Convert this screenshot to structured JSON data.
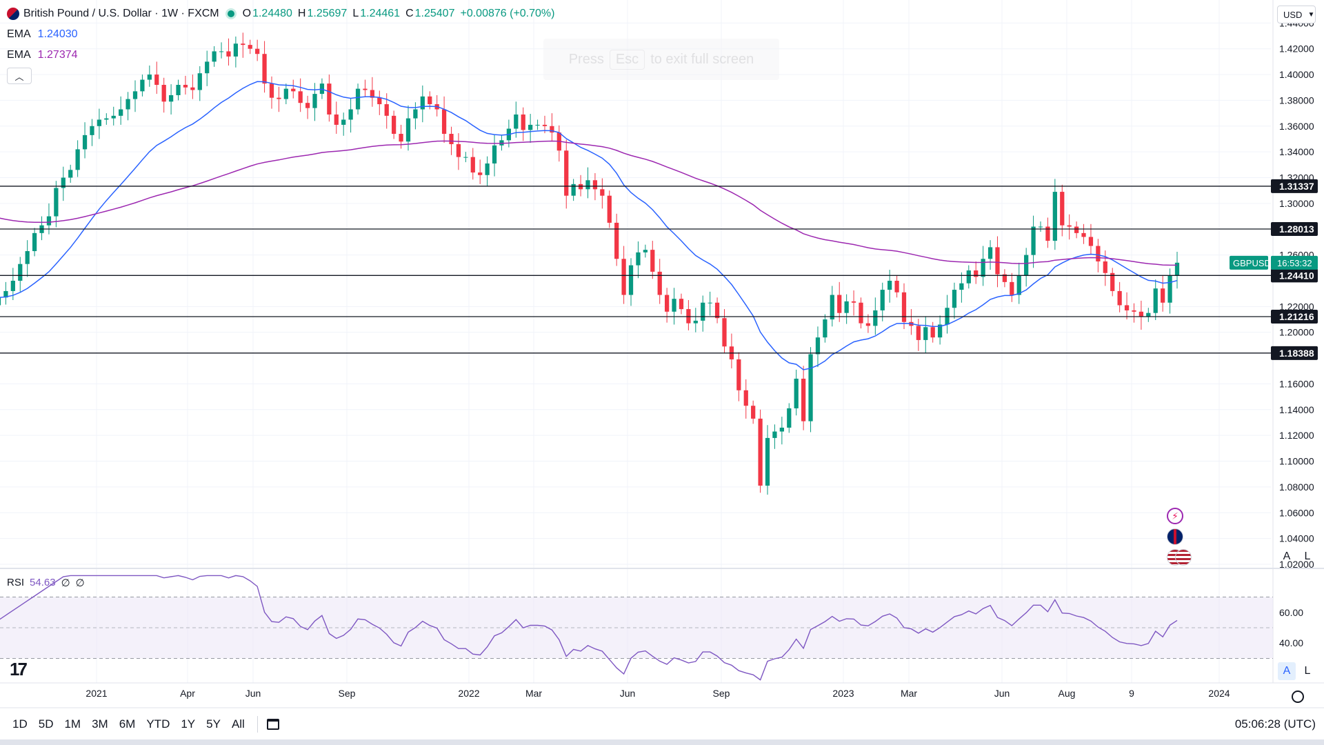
{
  "header": {
    "symbol_title": "British Pound / U.S. Dollar · 1W · FXCM",
    "ohlc": [
      {
        "label": "O",
        "value": "1.24480"
      },
      {
        "label": "H",
        "value": "1.25697"
      },
      {
        "label": "L",
        "value": "1.24461"
      },
      {
        "label": "C",
        "value": "1.25407"
      }
    ],
    "change": "+0.00876 (+0.70%)",
    "indicators": [
      {
        "label": "EMA",
        "value": "1.24030",
        "color": "#2962ff"
      },
      {
        "label": "EMA",
        "value": "1.27374",
        "color": "#9c27b0"
      }
    ],
    "collapse_icon": "chevron-up-icon"
  },
  "fullscreen_toast": {
    "pre": "Press",
    "key": "Esc",
    "post": "to exit full screen"
  },
  "currency_selector": "USD",
  "price_axis": {
    "ticks": [
      "1.44000",
      "1.42000",
      "1.40000",
      "1.38000",
      "1.36000",
      "1.34000",
      "1.32000",
      "1.30000",
      "1.26000",
      "1.22000",
      "1.20000",
      "1.16000",
      "1.14000",
      "1.12000",
      "1.10000",
      "1.08000",
      "1.06000",
      "1.04000",
      "1.02000"
    ],
    "tick_values": [
      1.44,
      1.42,
      1.4,
      1.38,
      1.36,
      1.34,
      1.32,
      1.3,
      1.26,
      1.22,
      1.2,
      1.16,
      1.14,
      1.12,
      1.1,
      1.08,
      1.06,
      1.04,
      1.02
    ],
    "horizontal_levels": [
      {
        "label": "1.31337",
        "value": 1.31337
      },
      {
        "label": "1.28013",
        "value": 1.28013
      },
      {
        "label": "1.24410",
        "value": 1.2441
      },
      {
        "label": "1.21216",
        "value": 1.21216
      },
      {
        "label": "1.18388",
        "value": 1.18388
      }
    ],
    "current_price_tag": {
      "symbol": "GBPUSD",
      "countdown": "16:53:32"
    },
    "scale_buttons": [
      "A",
      "L"
    ]
  },
  "time_axis": [
    "2021",
    "Apr",
    "Jun",
    "Sep",
    "2022",
    "Mar",
    "Jun",
    "Sep",
    "2023",
    "Mar",
    "Jun",
    "Aug",
    "9",
    "2024"
  ],
  "rsi": {
    "label": "RSI",
    "value": "54.63",
    "extra": [
      "∅",
      "∅"
    ],
    "ticks": [
      "60.00",
      "40.00"
    ],
    "tick_values": [
      60,
      40
    ],
    "upper_band": 70,
    "lower_band": 30,
    "middle": 50
  },
  "settings_icon": "gear-icon",
  "event_icons": [
    "lightning-icon",
    "uk-flag-icon",
    "us-flag-icon"
  ],
  "bottom_bar": {
    "ranges": [
      "1D",
      "5D",
      "1M",
      "3M",
      "6M",
      "YTD",
      "1Y",
      "5Y",
      "All"
    ],
    "date_range_icon": "calendar-icon",
    "clock": "05:06:28 (UTC)"
  },
  "brand": "17",
  "colors": {
    "bull": "#089981",
    "bear": "#f23645",
    "ema_fast": "#2962ff",
    "ema_slow": "#9c27b0",
    "rsi_line": "#7e57c2",
    "rsi_band": "#ede7f6"
  },
  "chart_data": {
    "type": "candlestick",
    "title": "British Pound / U.S. Dollar · 1W · FXCM",
    "ylim": [
      1.02,
      1.445
    ],
    "weekly_close": [
      1.227,
      1.232,
      1.24,
      1.253,
      1.263,
      1.277,
      1.283,
      1.29,
      1.312,
      1.32,
      1.326,
      1.342,
      1.353,
      1.36,
      1.365,
      1.366,
      1.368,
      1.373,
      1.381,
      1.387,
      1.396,
      1.4,
      1.392,
      1.379,
      1.384,
      1.392,
      1.39,
      1.388,
      1.401,
      1.41,
      1.418,
      1.418,
      1.414,
      1.424,
      1.423,
      1.42,
      1.416,
      1.393,
      1.382,
      1.381,
      1.389,
      1.387,
      1.378,
      1.374,
      1.385,
      1.393,
      1.369,
      1.361,
      1.365,
      1.373,
      1.389,
      1.388,
      1.382,
      1.377,
      1.368,
      1.354,
      1.348,
      1.366,
      1.373,
      1.383,
      1.377,
      1.373,
      1.354,
      1.346,
      1.336,
      1.336,
      1.324,
      1.322,
      1.331,
      1.345,
      1.349,
      1.358,
      1.369,
      1.357,
      1.361,
      1.361,
      1.36,
      1.355,
      1.341,
      1.306,
      1.315,
      1.311,
      1.318,
      1.311,
      1.306,
      1.285,
      1.257,
      1.229,
      1.252,
      1.262,
      1.264,
      1.247,
      1.229,
      1.216,
      1.226,
      1.218,
      1.207,
      1.209,
      1.223,
      1.223,
      1.211,
      1.189,
      1.179,
      1.155,
      1.143,
      1.133,
      1.081,
      1.118,
      1.123,
      1.126,
      1.141,
      1.164,
      1.131,
      1.183,
      1.196,
      1.21,
      1.229,
      1.215,
      1.224,
      1.223,
      1.207,
      1.205,
      1.217,
      1.233,
      1.24,
      1.231,
      1.208,
      1.205,
      1.194,
      1.204,
      1.196,
      1.206,
      1.219,
      1.233,
      1.238,
      1.248,
      1.243,
      1.257,
      1.266,
      1.245,
      1.239,
      1.229,
      1.244,
      1.26,
      1.282,
      1.282,
      1.271,
      1.309,
      1.283,
      1.282,
      1.277,
      1.274,
      1.267,
      1.255,
      1.246,
      1.232,
      1.221,
      1.217,
      1.216,
      1.212,
      1.215,
      1.234,
      1.223,
      1.244,
      1.254
    ]
  }
}
